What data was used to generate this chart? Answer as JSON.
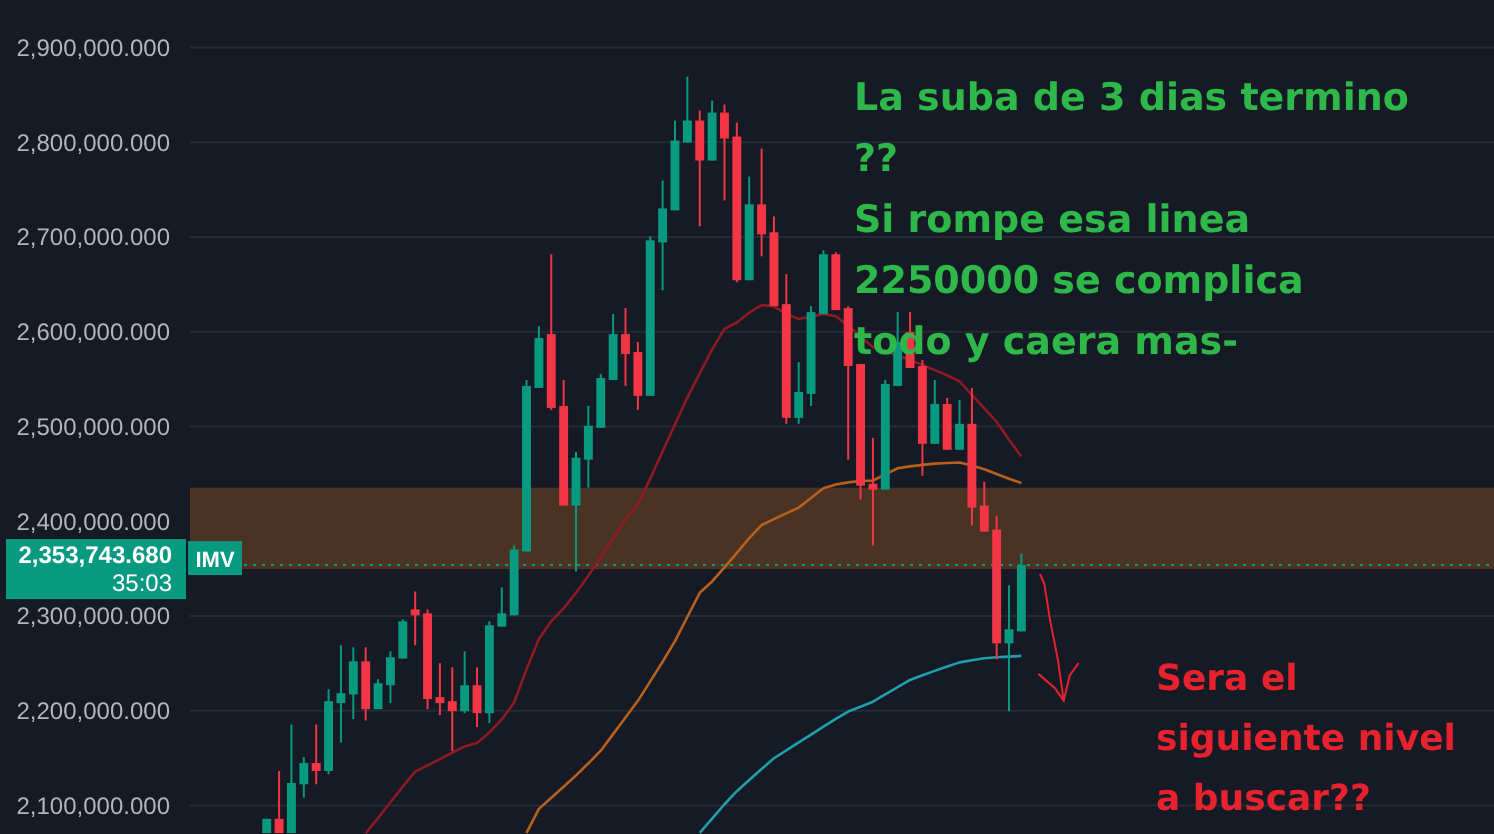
{
  "chart_data": {
    "type": "candlestick",
    "categories": [
      null,
      null,
      null,
      null,
      null,
      null,
      null,
      null,
      null,
      null,
      null,
      null,
      null,
      null,
      null,
      null,
      null,
      null,
      null,
      null,
      null,
      null,
      null,
      null,
      null,
      null,
      null,
      null,
      null,
      null,
      null,
      null,
      null,
      null,
      null,
      null,
      null,
      null,
      null,
      null,
      null,
      null,
      null,
      null,
      null,
      null,
      null,
      null,
      null,
      null,
      null,
      null,
      null,
      null,
      null,
      null,
      null,
      null,
      null,
      null,
      null,
      null
    ],
    "ohlc": [
      [
        2071000,
        2086000,
        2071000,
        2086000
      ],
      [
        2086000,
        2136500,
        2071000,
        2071000
      ],
      [
        2071000,
        2185600,
        2071000,
        2123900
      ],
      [
        2122500,
        2151200,
        2108400,
        2144900
      ],
      [
        2144900,
        2185600,
        2122500,
        2136500
      ],
      [
        2136500,
        2222800,
        2133000,
        2210200
      ],
      [
        2208100,
        2269100,
        2166600,
        2218600
      ],
      [
        2217200,
        2267000,
        2191200,
        2252200
      ],
      [
        2252200,
        2267000,
        2189800,
        2201700
      ],
      [
        2201700,
        2233300,
        2201700,
        2229100
      ],
      [
        2227000,
        2262800,
        2208100,
        2256500
      ],
      [
        2255100,
        2296500,
        2255100,
        2294400
      ],
      [
        2307000,
        2325900,
        2269100,
        2300700
      ],
      [
        2302800,
        2307000,
        2201700,
        2212300
      ],
      [
        2214400,
        2250200,
        2195400,
        2208100
      ],
      [
        2210200,
        2245900,
        2157500,
        2199600
      ],
      [
        2199600,
        2262800,
        2197500,
        2227000
      ],
      [
        2227000,
        2245900,
        2182800,
        2197500
      ],
      [
        2197500,
        2294400,
        2187000,
        2290200
      ],
      [
        2288800,
        2330200,
        2288800,
        2302800
      ],
      [
        2300700,
        2374400,
        2300700,
        2370200
      ],
      [
        2368100,
        2549100,
        2368100,
        2542800
      ],
      [
        2540700,
        2605900,
        2540700,
        2593300
      ],
      [
        2597500,
        2681700,
        2517500,
        2519600
      ],
      [
        2521700,
        2549100,
        2416500,
        2416500
      ],
      [
        2416500,
        2473300,
        2347000,
        2467000
      ],
      [
        2464900,
        2521700,
        2435400,
        2500700
      ],
      [
        2498600,
        2555400,
        2498600,
        2551200
      ],
      [
        2549100,
        2618600,
        2549100,
        2597500
      ],
      [
        2597500,
        2624900,
        2542800,
        2576400
      ],
      [
        2578500,
        2589100,
        2517500,
        2532300
      ],
      [
        2532300,
        2700600,
        2532300,
        2696400
      ],
      [
        2694300,
        2759600,
        2643800,
        2730100
      ],
      [
        2728000,
        2822800,
        2728000,
        2801700
      ],
      [
        2799600,
        2869100,
        2799600,
        2822800
      ],
      [
        2822800,
        2833300,
        2711200,
        2780600
      ],
      [
        2780600,
        2843800,
        2780600,
        2831200
      ],
      [
        2831200,
        2839600,
        2738500,
        2803800
      ],
      [
        2805900,
        2820600,
        2652200,
        2654300
      ],
      [
        2654300,
        2763800,
        2654300,
        2734300
      ],
      [
        2734300,
        2793300,
        2679600,
        2702800
      ],
      [
        2704900,
        2721700,
        2627000,
        2627000
      ],
      [
        2629100,
        2660700,
        2502800,
        2509100
      ],
      [
        2509100,
        2568000,
        2502800,
        2536500
      ],
      [
        2534400,
        2627000,
        2521700,
        2620700
      ],
      [
        2618600,
        2685900,
        2618600,
        2681700
      ],
      [
        2681700,
        2683800,
        2622800,
        2622800
      ],
      [
        2624900,
        2627000,
        2464900,
        2563800
      ],
      [
        2565900,
        2565900,
        2422800,
        2437500
      ],
      [
        2439600,
        2488100,
        2374400,
        2433300
      ],
      [
        2433300,
        2549100,
        2433300,
        2544900
      ],
      [
        2542800,
        2620700,
        2542800,
        2589100
      ],
      [
        2599600,
        2620700,
        2561700,
        2561700
      ],
      [
        2563800,
        2570100,
        2448000,
        2481700
      ],
      [
        2481700,
        2549100,
        2481700,
        2523800
      ],
      [
        2523800,
        2530100,
        2475400,
        2475400
      ],
      [
        2475400,
        2528000,
        2475400,
        2502800
      ],
      [
        2502800,
        2540700,
        2395400,
        2414400
      ],
      [
        2416500,
        2441700,
        2389100,
        2389100
      ],
      [
        2391200,
        2405900,
        2254400,
        2271200
      ],
      [
        2271200,
        2332300,
        2199600,
        2286000
      ],
      [
        2283800,
        2365900,
        2283800,
        2353743.68
      ]
    ],
    "series": [
      {
        "type": "line",
        "color": "#8e1a22",
        "values": [
          null,
          null,
          null,
          null,
          null,
          null,
          null,
          null,
          2071000,
          2086800,
          2103500,
          2120100,
          2135800,
          2142400,
          2149100,
          2155800,
          2162400,
          2166000,
          2177200,
          2190900,
          2208800,
          2243900,
          2275700,
          2294600,
          2308000,
          2324600,
          2342500,
          2362300,
          2382000,
          2401700,
          2417700,
          2445000,
          2473700,
          2502300,
          2530500,
          2555900,
          2581400,
          2603000,
          2609700,
          2620100,
          2628100,
          2626800,
          2618600,
          2613500,
          2616100,
          2618800,
          2616400,
          2606400,
          2594700,
          2583800,
          2579400,
          2574800,
          2570000,
          2565000,
          2559500,
          2554000,
          2547700,
          2533400,
          2519100,
          2504900,
          2486000,
          2468400
        ]
      },
      {
        "type": "line",
        "color": "#b8601c",
        "values": [
          null,
          null,
          null,
          null,
          null,
          null,
          null,
          null,
          null,
          null,
          null,
          null,
          null,
          null,
          null,
          null,
          null,
          null,
          null,
          null,
          null,
          2071200,
          2096500,
          2108200,
          2119900,
          2131900,
          2144600,
          2157900,
          2175400,
          2193000,
          2210500,
          2231000,
          2251800,
          2273500,
          2299000,
          2324500,
          2336500,
          2351300,
          2366600,
          2382200,
          2396000,
          2402300,
          2408300,
          2414400,
          2424600,
          2434800,
          2438700,
          2441000,
          2442400,
          2443000,
          2449400,
          2455900,
          2457900,
          2459500,
          2460800,
          2461400,
          2462000,
          2458900,
          2454800,
          2449900,
          2444800,
          2440300
        ]
      },
      {
        "type": "line",
        "color": "#1e9fae",
        "values": [
          null,
          null,
          null,
          null,
          null,
          null,
          null,
          null,
          null,
          null,
          null,
          null,
          null,
          null,
          null,
          null,
          null,
          null,
          null,
          null,
          null,
          null,
          null,
          null,
          null,
          null,
          null,
          null,
          null,
          null,
          null,
          null,
          null,
          null,
          null,
          2071200,
          2086300,
          2101400,
          2115200,
          2126900,
          2138600,
          2149900,
          2158300,
          2166600,
          2174900,
          2183200,
          2191500,
          2199200,
          2204300,
          2209600,
          2217200,
          2224900,
          2232500,
          2237500,
          2242100,
          2246800,
          2251100,
          2253300,
          2255500,
          2256500,
          2257200,
          2257900
        ]
      }
    ],
    "ylim": [
      2070000,
      2950000
    ],
    "yticks": [
      {
        "value": 2100000,
        "label": "2,100,000.000"
      },
      {
        "value": 2200000,
        "label": "2,200,000.000"
      },
      {
        "value": 2300000,
        "label": "2,300,000.000"
      },
      {
        "value": 2400000,
        "label": "2,400,000.000"
      },
      {
        "value": 2500000,
        "label": "2,500,000.000"
      },
      {
        "value": 2600000,
        "label": "2,600,000.000"
      },
      {
        "value": 2700000,
        "label": "2,700,000.000"
      },
      {
        "value": 2800000,
        "label": "2,800,000.000"
      },
      {
        "value": 2900000,
        "label": "2,900,000.000"
      }
    ],
    "grid": "y",
    "tick_labels": "y",
    "bands": [
      {
        "axis": "y",
        "from": 2349500,
        "to": 2435400,
        "color": "#4a3322"
      }
    ],
    "ref_lines": [
      {
        "axis": "y",
        "value": 2353743.68,
        "label": "2,353,743.680",
        "color": "#089981",
        "line_style": "dotted"
      }
    ],
    "annotations": [
      "La suba de 3 dias termino\n??\nSi rompe esa linea\n2250000 se complica\ntodo y caera mas-",
      "Sera el\nsiguiente nivel\na buscar??",
      "35:03",
      "IMV"
    ]
  }
}
